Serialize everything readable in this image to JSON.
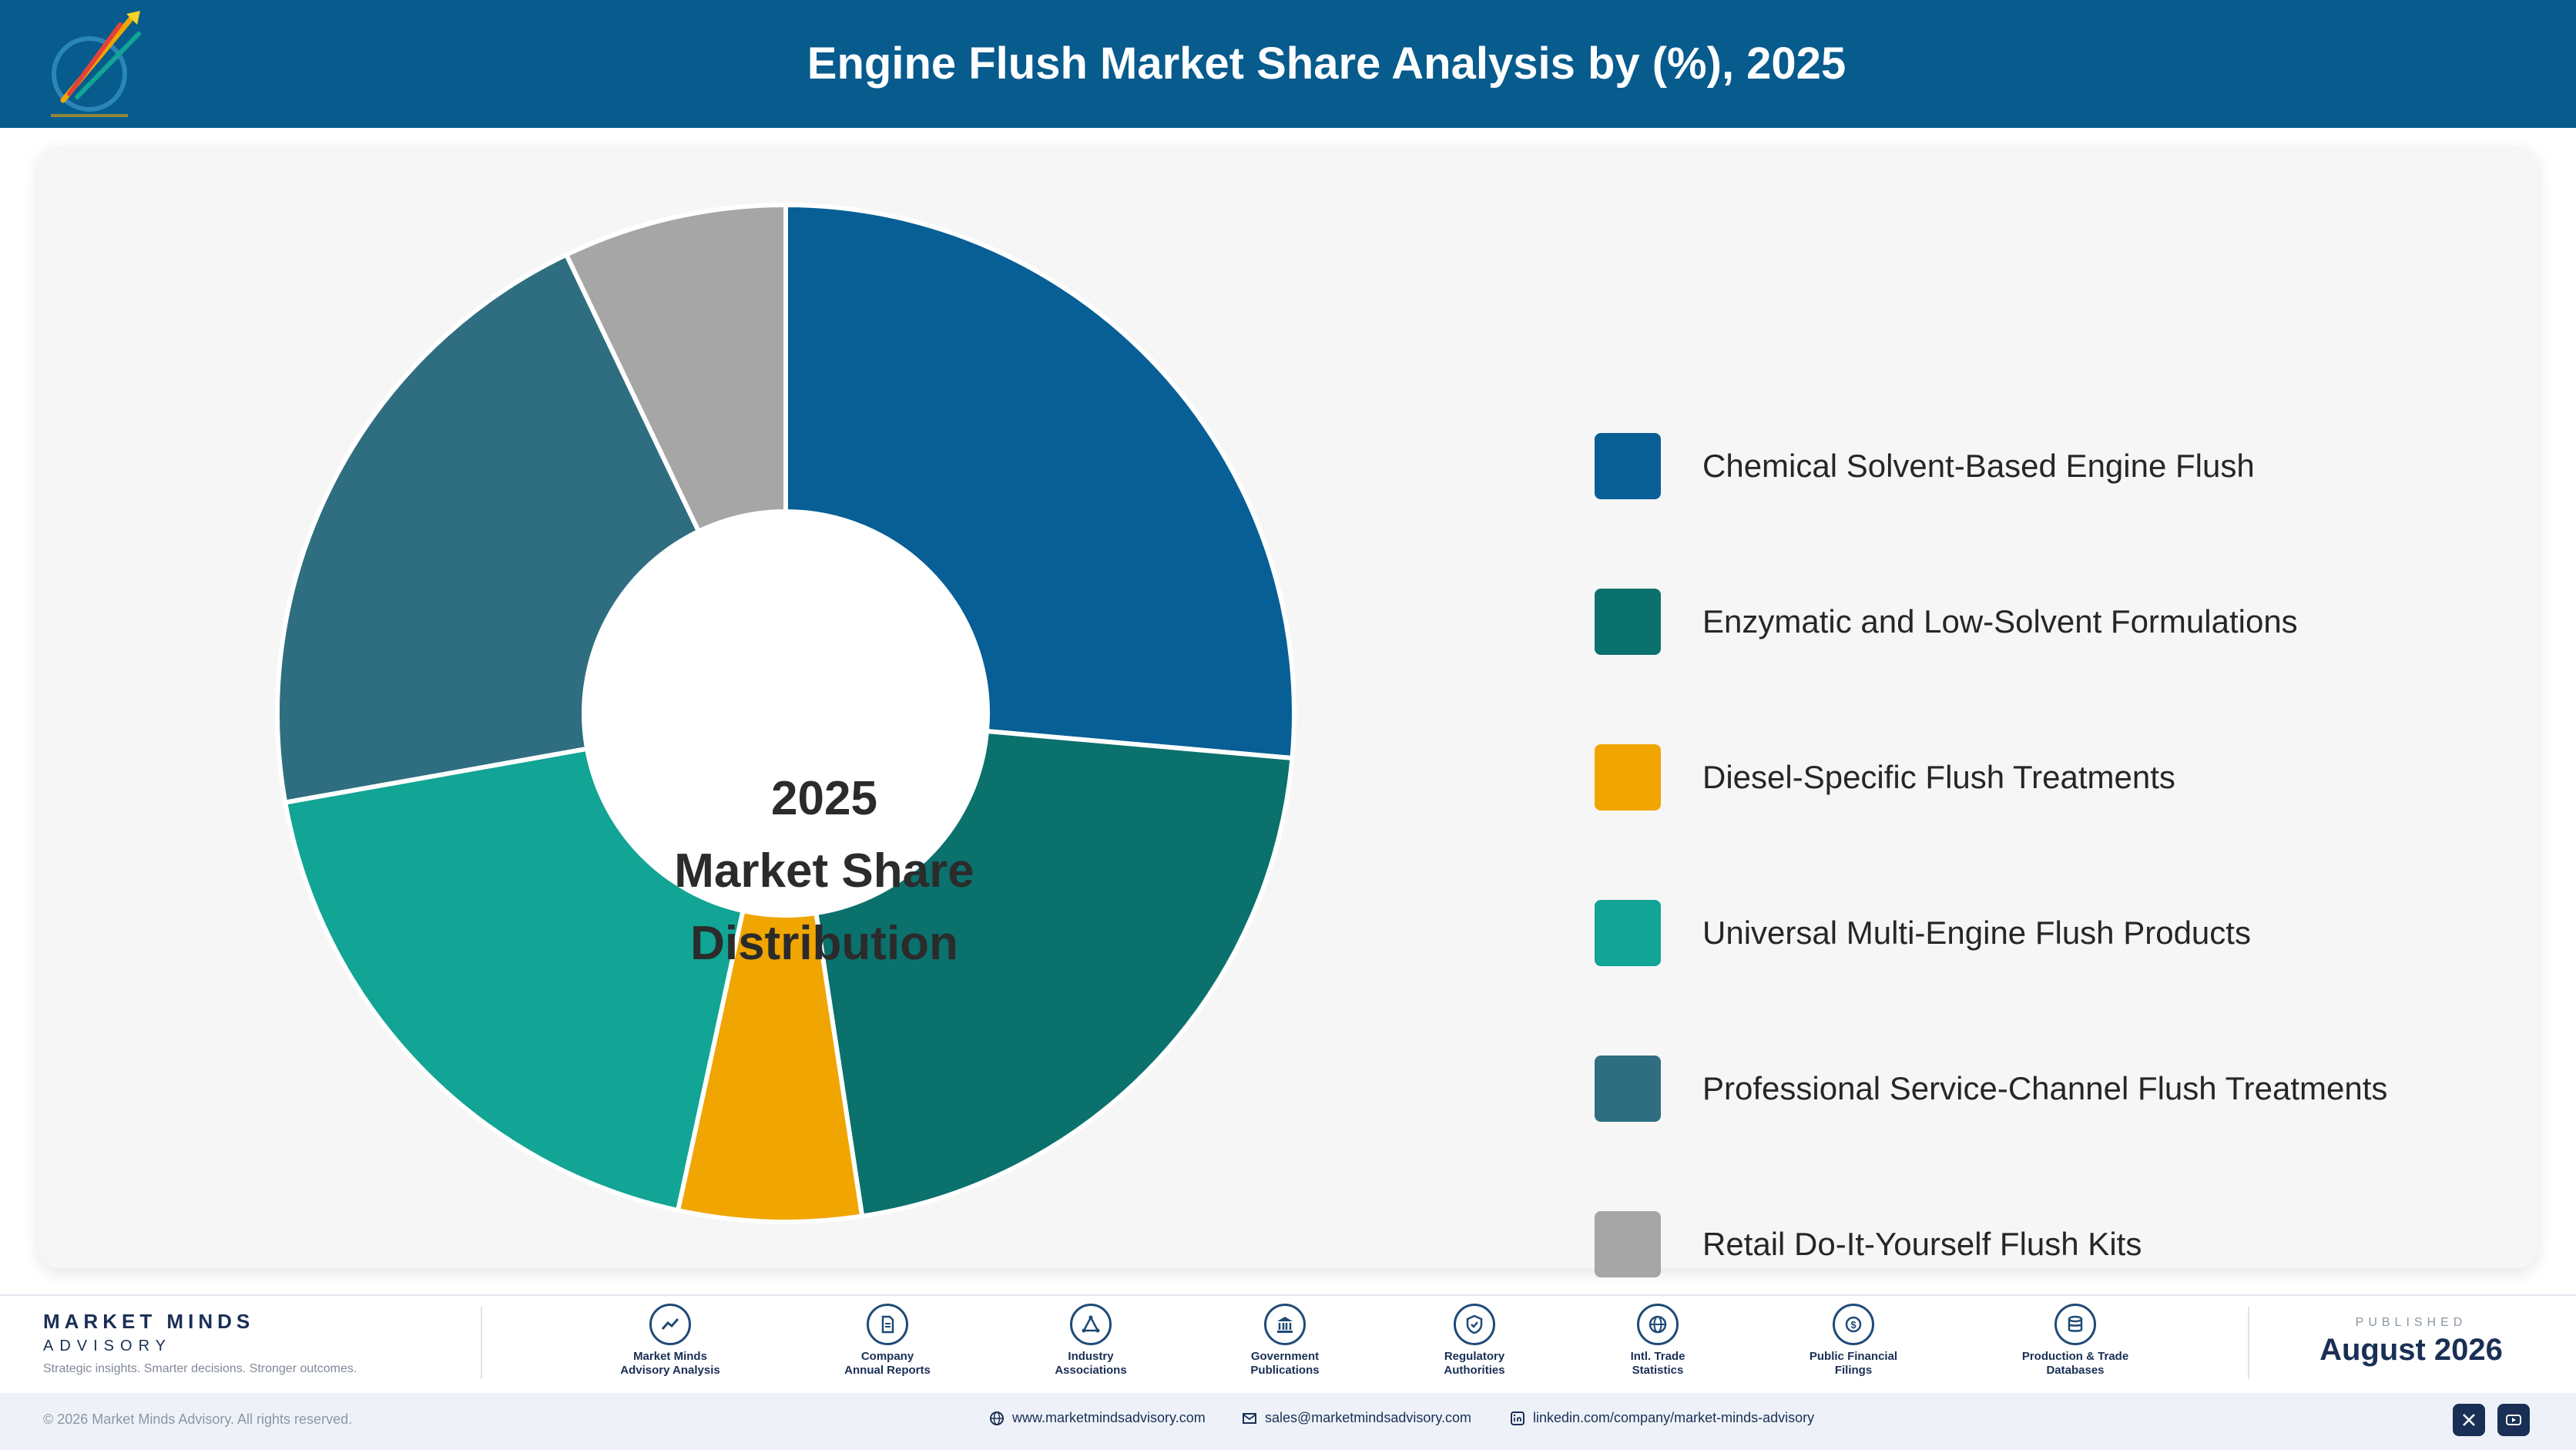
{
  "header": {
    "title": "Engine Flush Market Share Analysis by (%), 2025"
  },
  "colors": {
    "header_bg": "#075b8d",
    "card_bg": "#f6f6f6",
    "brand_navy": "#1a2f55"
  },
  "chart_data": {
    "type": "pie",
    "variant": "donut",
    "center_label": [
      "2025",
      "Market Share",
      "Distribution"
    ],
    "legend_position": "right",
    "categories": [
      "Chemical Solvent-Based Engine Flush",
      "Enzymatic and Low-Solvent Formulations",
      "Diesel-Specific Flush Treatments",
      "Universal Multi-Engine Flush Products",
      "Professional Service-Channel Flush Treatments",
      "Retail Do-It-Yourself Flush Kits"
    ],
    "values": [
      26.4,
      21.2,
      5.8,
      18.8,
      20.7,
      7.1
    ],
    "colors": [
      "#075f95",
      "#0b716d",
      "#f0a500",
      "#12a494",
      "#2f6e80",
      "#a6a6a6"
    ]
  },
  "footer": {
    "brand_name": "MARKET MINDS",
    "brand_sub": "ADVISORY",
    "tagline": "Strategic insights. Smarter decisions. Stronger outcomes.",
    "sources": [
      {
        "icon": "trend-chart-icon",
        "line1": "Market Minds",
        "line2": "Advisory Analysis"
      },
      {
        "icon": "document-icon",
        "line1": "Company",
        "line2": "Annual Reports"
      },
      {
        "icon": "network-icon",
        "line1": "Industry",
        "line2": "Associations"
      },
      {
        "icon": "government-building-icon",
        "line1": "Government",
        "line2": "Publications"
      },
      {
        "icon": "shield-check-icon",
        "line1": "Regulatory",
        "line2": "Authorities"
      },
      {
        "icon": "globe-icon",
        "line1": "Intl. Trade",
        "line2": "Statistics"
      },
      {
        "icon": "dollar-coin-icon",
        "line1": "Public Financial",
        "line2": "Filings"
      },
      {
        "icon": "database-icon",
        "line1": "Production & Trade",
        "line2": "Databases"
      }
    ],
    "published_caption": "PUBLISHED",
    "published_date": "August 2026",
    "copyright": "© 2026 Market Minds Advisory. All rights reserved.",
    "website": "www.marketmindsadvisory.com",
    "email": "sales@marketmindsadvisory.com",
    "linkedin": "linkedin.com/company/market-minds-advisory"
  }
}
